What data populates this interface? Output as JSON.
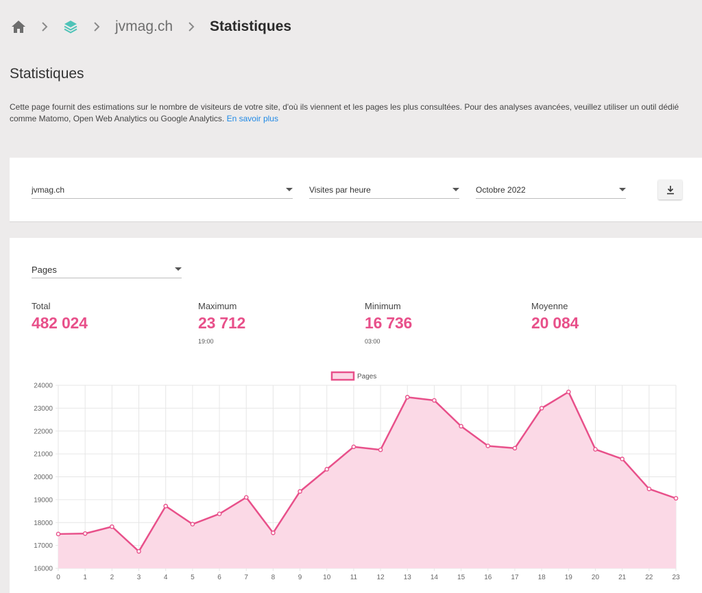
{
  "breadcrumb": {
    "site": "jvmag.ch",
    "current": "Statistiques"
  },
  "page": {
    "title": "Statistiques",
    "intro": "Cette page fournit des estimations sur le nombre de visiteurs de votre site, d'où ils viennent et les pages les plus consultées. Pour des analyses avancées, veuillez utiliser un outil dédié comme Matomo, Open Web Analytics ou Google Analytics.",
    "learn_more": "En savoir plus"
  },
  "filters": {
    "site": "jvmag.ch",
    "mode": "Visites par heure",
    "period": "Octobre 2022"
  },
  "stats": {
    "metric_select": "Pages",
    "total_label": "Total",
    "total_value": "482 024",
    "max_label": "Maximum",
    "max_value": "23 712",
    "max_time": "19:00",
    "min_label": "Minimum",
    "min_value": "16 736",
    "min_time": "03:00",
    "avg_label": "Moyenne",
    "avg_value": "20 084"
  },
  "colors": {
    "accent": "#e8508a",
    "fill": "#fbd9e6",
    "link": "#1e88e5"
  },
  "chart_data": {
    "type": "area",
    "x": [
      0,
      1,
      2,
      3,
      4,
      5,
      6,
      7,
      8,
      9,
      10,
      11,
      12,
      13,
      14,
      15,
      16,
      17,
      18,
      19,
      20,
      21,
      22,
      23
    ],
    "series": [
      {
        "name": "Pages",
        "values": [
          17500,
          17520,
          17820,
          16740,
          18720,
          17930,
          18380,
          19100,
          17550,
          19360,
          20330,
          21310,
          21180,
          23480,
          23340,
          22210,
          21350,
          21250,
          23000,
          23710,
          21200,
          20780,
          19470,
          19060
        ]
      }
    ],
    "ylim": [
      16000,
      24000
    ],
    "yticks": [
      16000,
      17000,
      18000,
      19000,
      20000,
      21000,
      22000,
      23000,
      24000
    ],
    "legend": "top-center",
    "grid": true
  }
}
